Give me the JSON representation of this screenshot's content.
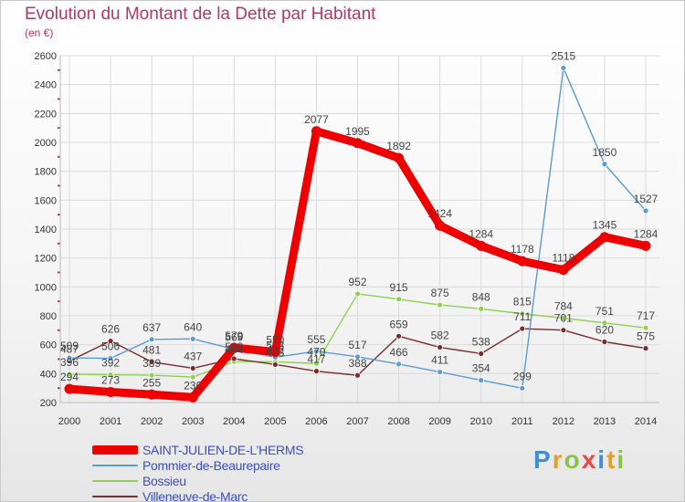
{
  "header": {
    "title": "Evolution du Montant de la Dette par Habitant",
    "subtitle": "(en €)"
  },
  "logo": {
    "text": "Proxiti",
    "colors": [
      "#3d8fd6",
      "#e8a020",
      "#8bc34a",
      "#e84a4a",
      "#3d8fd6",
      "#e8a020",
      "#8bc34a"
    ]
  },
  "chart_data": {
    "type": "line",
    "x": [
      "2000",
      "2001",
      "2002",
      "2003",
      "2004",
      "2005",
      "2006",
      "2007",
      "2008",
      "2009",
      "2010",
      "2011",
      "2012",
      "2013",
      "2014"
    ],
    "ylim": [
      200,
      2600
    ],
    "yticks": [
      "200",
      "400",
      "600",
      "800",
      "1000",
      "1200",
      "1400",
      "1600",
      "1800",
      "2000",
      "2200",
      "2400",
      "2600"
    ],
    "grid": true,
    "legend_position": "bottom-left",
    "series": [
      {
        "name": "SAINT-JULIEN-DE-L'HERMS",
        "color": "#ee0000",
        "values": [
          294,
          273,
          255,
          236,
          579,
          550,
          2077,
          1995,
          1892,
          1424,
          1284,
          1178,
          1118,
          1345,
          1284
        ],
        "labels": [
          "294",
          "273",
          "255",
          "236",
          "579",
          "550",
          "2077",
          "1995",
          "1892",
          "1424",
          "1284",
          "1178",
          "1118",
          "1345",
          "1284"
        ]
      },
      {
        "name": "Pommier-de-Beaurepaire",
        "color": "#5b9bd5",
        "values": [
          509,
          506,
          637,
          640,
          569,
          513,
          555,
          517,
          466,
          411,
          354,
          299,
          2515,
          1850,
          1527
        ],
        "labels": [
          "509",
          "506",
          "637",
          "640",
          "569",
          "513",
          "555",
          "517",
          "466",
          "411",
          "354",
          "299",
          "2515",
          "1850",
          "1527"
        ]
      },
      {
        "name": "Bossieu",
        "color": "#8fd14f",
        "values": [
          396,
          392,
          389,
          376,
          484,
          482,
          470,
          952,
          915,
          875,
          848,
          815,
          784,
          751,
          717
        ],
        "labels": [
          "396",
          "392",
          "389",
          "",
          "484",
          "482",
          "470",
          "952",
          "915",
          "875",
          "848",
          "815",
          "784",
          "751",
          "717"
        ]
      },
      {
        "name": "Villeneuve-de-Marc",
        "color": "#7b2c2c",
        "values": [
          487,
          626,
          481,
          437,
          503,
          463,
          417,
          388,
          659,
          582,
          538,
          711,
          701,
          620,
          575
        ],
        "labels": [
          "487",
          "626",
          "481",
          "437",
          "503",
          "463",
          "417",
          "388",
          "659",
          "582",
          "538",
          "711",
          "701",
          "620",
          "575"
        ]
      }
    ]
  }
}
